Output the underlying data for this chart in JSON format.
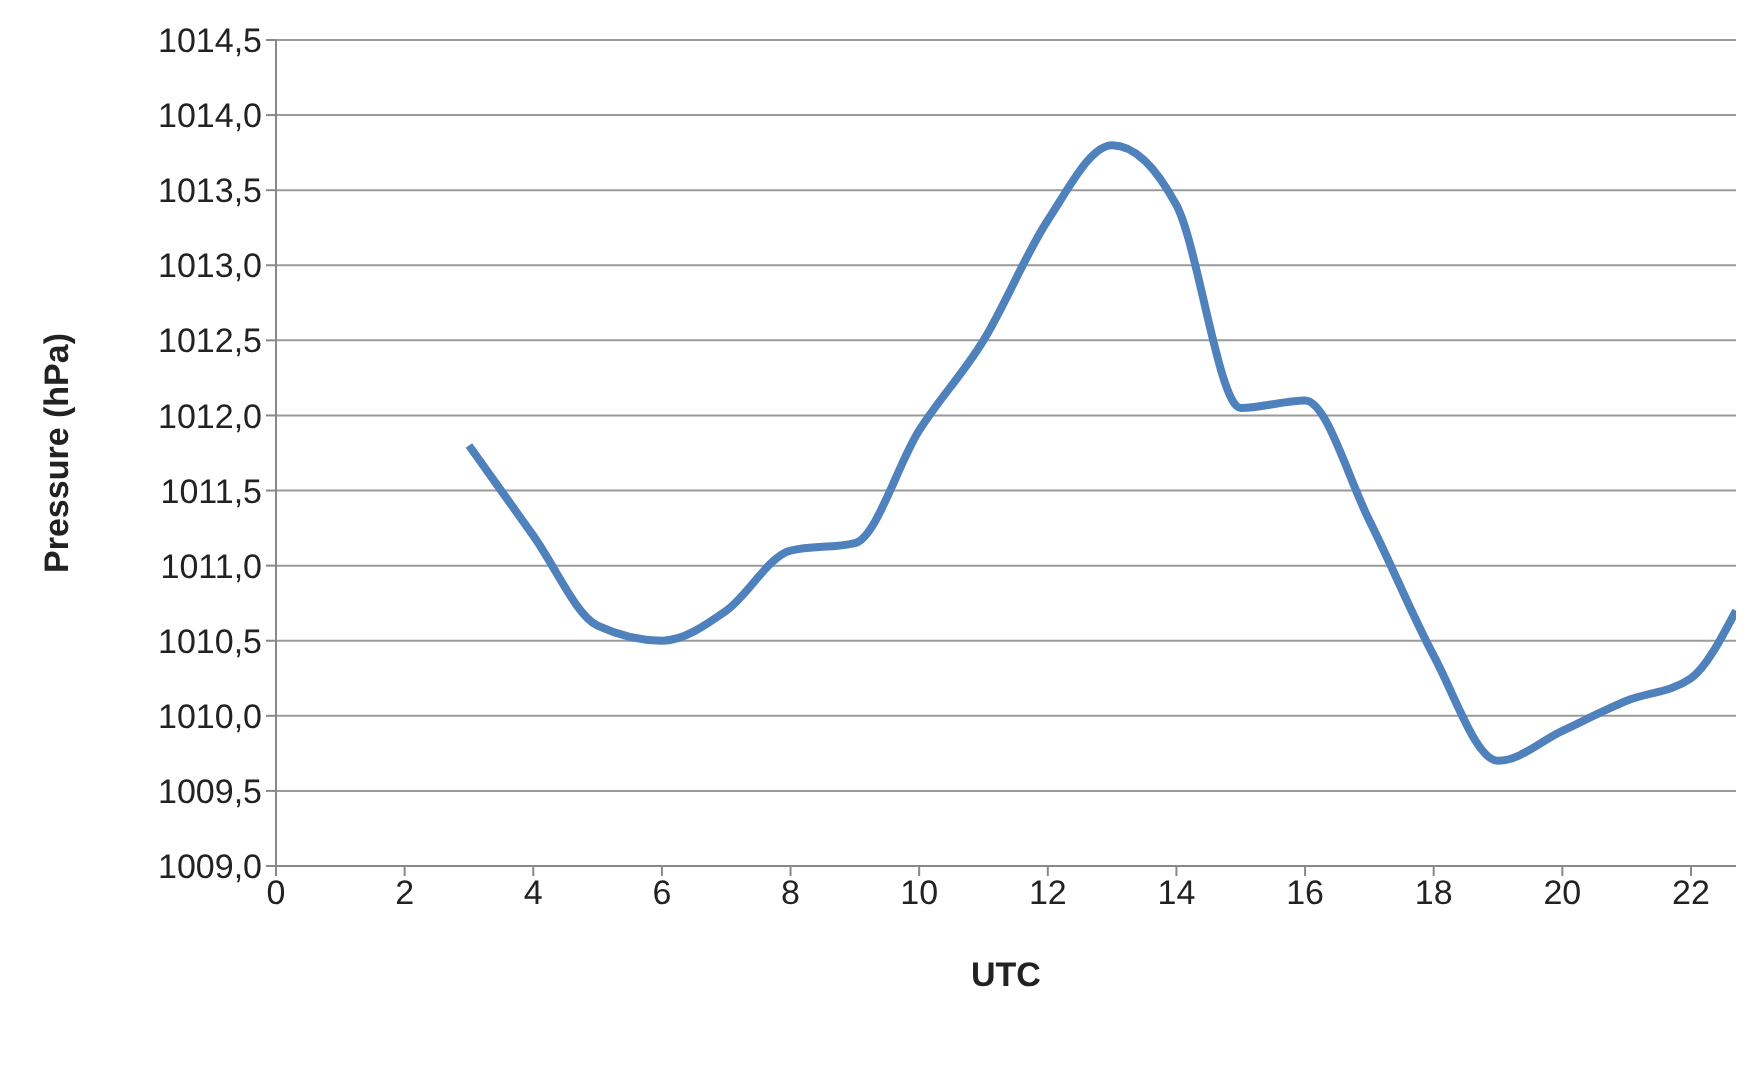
{
  "chart_data": {
    "type": "line",
    "xlabel": "UTC",
    "ylabel": "Pressure (hPa)",
    "x": [
      3,
      4,
      5,
      6,
      7,
      8,
      9,
      10,
      11,
      12,
      13,
      14,
      15,
      16,
      17,
      18,
      19,
      20,
      21,
      22,
      22.7
    ],
    "series": [
      {
        "color": "#4f81bd",
        "values": [
          1011.8,
          1011.2,
          1010.6,
          1010.5,
          1010.7,
          1011.1,
          1011.15,
          1011.9,
          1012.5,
          1013.3,
          1013.8,
          1013.4,
          1012.05,
          1012.1,
          1011.3,
          1010.4,
          1009.7,
          1009.9,
          1010.1,
          1010.25,
          1010.7
        ]
      }
    ],
    "xlim": [
      0,
      22.7
    ],
    "xticks": [
      0,
      2,
      4,
      6,
      8,
      10,
      12,
      14,
      16,
      18,
      20,
      22
    ],
    "ylim": [
      1009,
      1014.5
    ],
    "yticks": [
      {
        "value": 1009,
        "label": "1009,0"
      },
      {
        "value": 1009.5,
        "label": "1009,5"
      },
      {
        "value": 1010,
        "label": "1010,0"
      },
      {
        "value": 1010.5,
        "label": "1010,5"
      },
      {
        "value": 1011,
        "label": "1011,0"
      },
      {
        "value": 1011.5,
        "label": "1011,5"
      },
      {
        "value": 1012,
        "label": "1012,0"
      },
      {
        "value": 1012.5,
        "label": "1012,5"
      },
      {
        "value": 1013,
        "label": "1013,0"
      },
      {
        "value": 1013.5,
        "label": "1013,5"
      },
      {
        "value": 1014,
        "label": "1014,0"
      },
      {
        "value": 1014.5,
        "label": "1014,5"
      }
    ],
    "grid": "y",
    "legend": false,
    "marker": "none",
    "line_style": "solid"
  }
}
